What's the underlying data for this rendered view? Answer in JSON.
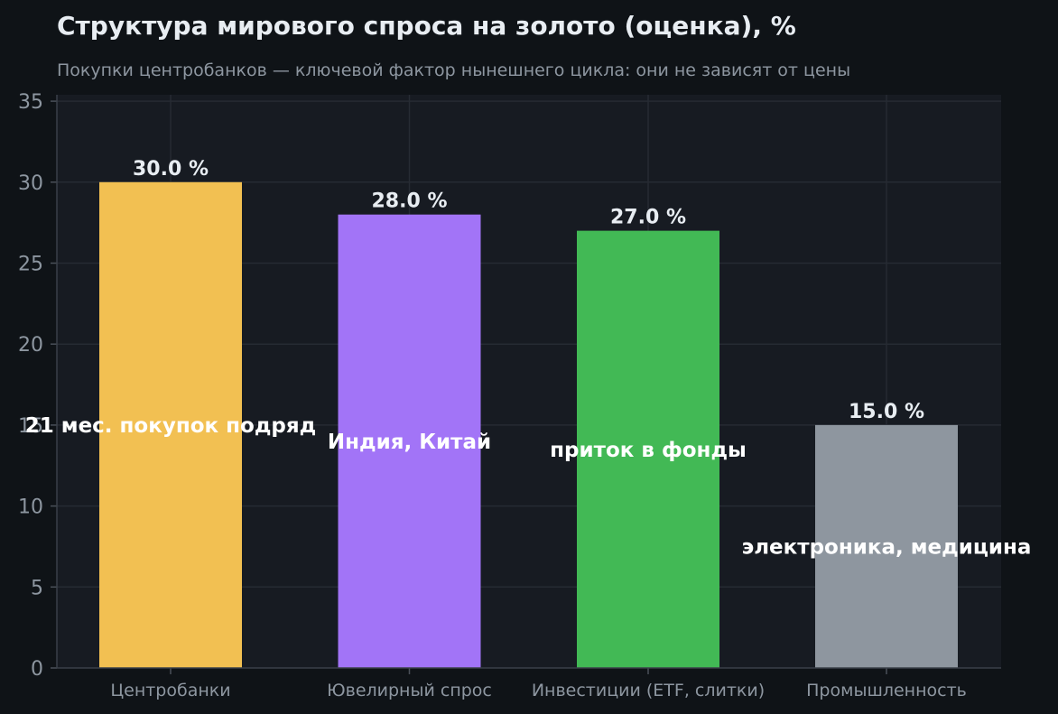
{
  "chart_data": {
    "type": "bar",
    "title": "Структура мирового спроса на золото (оценка), %",
    "subtitle": "Покупки центробанков — ключевой фактор нынешнего цикла: они не зависят от цены",
    "xlabel": "",
    "ylabel": "",
    "ylim": [
      0,
      35
    ],
    "yticks": [
      0,
      5,
      10,
      15,
      20,
      25,
      30,
      35
    ],
    "grid": true,
    "categories": [
      "Центробанки",
      "Ювелирный спрос",
      "Инвестиции (ETF, слитки)",
      "Промышленность"
    ],
    "values": [
      30.0,
      28.0,
      27.0,
      15.0
    ],
    "value_labels": [
      "30.0 %",
      "28.0 %",
      "27.0 %",
      "15.0 %"
    ],
    "colors": [
      "#f2c052",
      "#a274f7",
      "#42b955",
      "#8e969f"
    ],
    "annotations": [
      {
        "text": "21 мес. покупок подряд",
        "category": "Центробанки",
        "y": 15.0
      },
      {
        "text": "Индия, Китай",
        "category": "Ювелирный спрос",
        "y": 14.0
      },
      {
        "text": "приток в фонды",
        "category": "Инвестиции (ETF, слитки)",
        "y": 13.5
      },
      {
        "text": "электроника, медицина",
        "category": "Промышленность",
        "y": 7.5
      }
    ]
  }
}
